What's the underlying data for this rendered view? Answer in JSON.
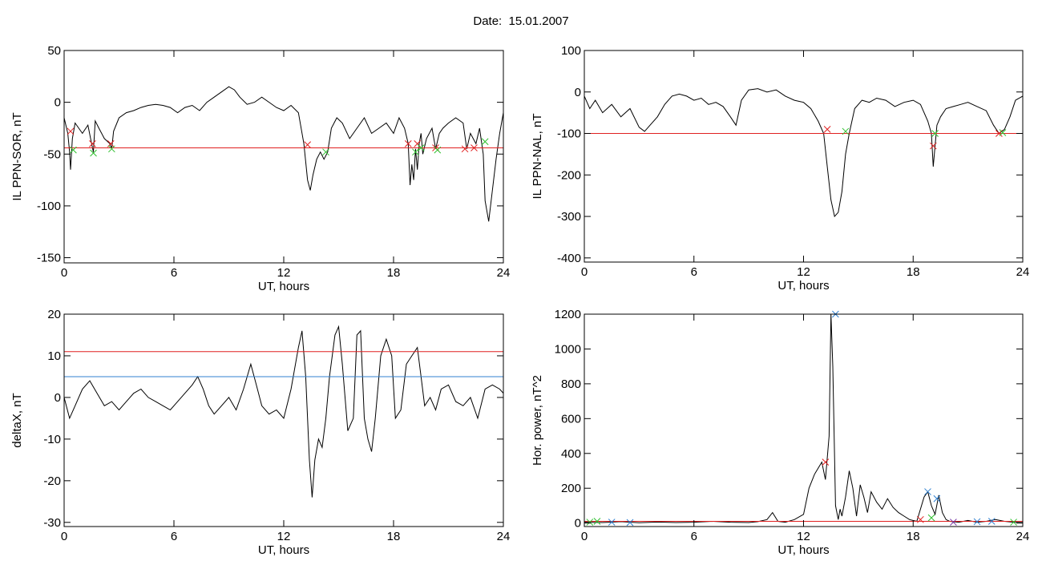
{
  "title": "Date:  15.01.2007",
  "chart_data": [
    {
      "type": "line",
      "ylabel": "IL PPN-SOR, nT",
      "xlabel": "UT, hours",
      "xlim": [
        0,
        24
      ],
      "ylim": [
        -155,
        50
      ],
      "xticks": [
        0,
        6,
        12,
        18,
        24
      ],
      "yticks": [
        -150,
        -100,
        -50,
        0,
        50
      ],
      "thresholds": [
        {
          "value": -44,
          "color": "#e02020"
        }
      ],
      "series": [
        {
          "color": "#000000",
          "x": [
            0,
            0.2,
            0.3,
            0.35,
            0.45,
            0.6,
            0.8,
            1.0,
            1.3,
            1.5,
            1.6,
            1.7,
            1.9,
            2.2,
            2.5,
            2.6,
            2.7,
            3.0,
            3.4,
            3.8,
            4.2,
            4.6,
            5.0,
            5.4,
            5.8,
            6.2,
            6.6,
            7.0,
            7.4,
            7.8,
            8.2,
            8.6,
            9.0,
            9.3,
            9.6,
            10.0,
            10.4,
            10.8,
            11.2,
            11.6,
            12.0,
            12.4,
            12.8,
            13.1,
            13.3,
            13.45,
            13.6,
            13.8,
            14.0,
            14.2,
            14.4,
            14.6,
            14.9,
            15.2,
            15.6,
            16.0,
            16.4,
            16.8,
            17.2,
            17.6,
            18.0,
            18.3,
            18.6,
            18.8,
            18.9,
            19.0,
            19.1,
            19.2,
            19.3,
            19.4,
            19.5,
            19.6,
            19.8,
            20.1,
            20.3,
            20.5,
            20.7,
            21.0,
            21.4,
            21.8,
            22.0,
            22.2,
            22.5,
            22.7,
            22.9,
            23.0,
            23.2,
            23.4,
            23.6,
            23.8,
            24.0
          ],
          "y": [
            -15,
            -30,
            -48,
            -65,
            -35,
            -20,
            -25,
            -30,
            -22,
            -40,
            -48,
            -18,
            -25,
            -35,
            -40,
            -45,
            -28,
            -15,
            -10,
            -8,
            -5,
            -3,
            -2,
            -3,
            -5,
            -10,
            -5,
            -3,
            -8,
            0,
            5,
            10,
            15,
            12,
            5,
            -2,
            0,
            5,
            0,
            -5,
            -8,
            -3,
            -10,
            -40,
            -75,
            -85,
            -70,
            -55,
            -48,
            -55,
            -48,
            -25,
            -15,
            -20,
            -35,
            -25,
            -15,
            -30,
            -25,
            -20,
            -30,
            -15,
            -25,
            -40,
            -80,
            -60,
            -75,
            -45,
            -65,
            -40,
            -30,
            -50,
            -35,
            -25,
            -45,
            -30,
            -25,
            -20,
            -15,
            -20,
            -45,
            -30,
            -40,
            -25,
            -50,
            -95,
            -115,
            -85,
            -55,
            -30,
            -10
          ]
        }
      ],
      "markers": [
        {
          "x": 0.35,
          "y": -28,
          "color": "#e02020"
        },
        {
          "x": 0.5,
          "y": -46,
          "color": "#30c030"
        },
        {
          "x": 1.55,
          "y": -40,
          "color": "#e02020"
        },
        {
          "x": 1.6,
          "y": -49,
          "color": "#30c030"
        },
        {
          "x": 2.55,
          "y": -40,
          "color": "#e02020"
        },
        {
          "x": 2.6,
          "y": -45,
          "color": "#30c030"
        },
        {
          "x": 13.3,
          "y": -41,
          "color": "#e02020"
        },
        {
          "x": 14.3,
          "y": -48,
          "color": "#30c030"
        },
        {
          "x": 18.8,
          "y": -40,
          "color": "#e02020"
        },
        {
          "x": 19.3,
          "y": -40,
          "color": "#e02020"
        },
        {
          "x": 19.2,
          "y": -48,
          "color": "#30c030"
        },
        {
          "x": 19.5,
          "y": -44,
          "color": "#30c030"
        },
        {
          "x": 20.3,
          "y": -44,
          "color": "#e02020"
        },
        {
          "x": 20.4,
          "y": -46,
          "color": "#30c030"
        },
        {
          "x": 21.9,
          "y": -45,
          "color": "#e02020"
        },
        {
          "x": 22.4,
          "y": -44,
          "color": "#e02020"
        },
        {
          "x": 23.0,
          "y": -38,
          "color": "#30c030"
        }
      ]
    },
    {
      "type": "line",
      "ylabel": "IL PPN-NAL, nT",
      "xlabel": "UT, hours",
      "xlim": [
        0,
        24
      ],
      "ylim": [
        -410,
        100
      ],
      "xticks": [
        0,
        6,
        12,
        18,
        24
      ],
      "yticks": [
        -400,
        -300,
        -200,
        -100,
        0,
        100
      ],
      "thresholds": [
        {
          "value": -100,
          "color": "#e02020"
        }
      ],
      "series": [
        {
          "color": "#000000",
          "x": [
            0,
            0.3,
            0.6,
            1.0,
            1.5,
            2.0,
            2.5,
            3.0,
            3.3,
            3.6,
            4.0,
            4.4,
            4.8,
            5.2,
            5.6,
            6.0,
            6.4,
            6.8,
            7.2,
            7.6,
            8.0,
            8.3,
            8.6,
            9.0,
            9.5,
            10.0,
            10.5,
            11.0,
            11.5,
            12.0,
            12.4,
            12.8,
            13.1,
            13.3,
            13.5,
            13.7,
            13.9,
            14.1,
            14.3,
            14.5,
            14.8,
            15.2,
            15.6,
            16.0,
            16.5,
            17.0,
            17.5,
            18.0,
            18.4,
            18.8,
            19.0,
            19.1,
            19.2,
            19.3,
            19.5,
            19.8,
            20.2,
            20.6,
            21.0,
            21.5,
            22.0,
            22.4,
            22.7,
            23.0,
            23.3,
            23.6,
            24.0
          ],
          "y": [
            -10,
            -40,
            -20,
            -50,
            -30,
            -60,
            -40,
            -85,
            -95,
            -80,
            -60,
            -30,
            -10,
            -5,
            -10,
            -20,
            -15,
            -30,
            -25,
            -35,
            -60,
            -80,
            -20,
            5,
            8,
            0,
            5,
            -10,
            -20,
            -25,
            -40,
            -70,
            -100,
            -180,
            -260,
            -300,
            -290,
            -240,
            -150,
            -100,
            -40,
            -20,
            -25,
            -15,
            -20,
            -35,
            -25,
            -20,
            -30,
            -70,
            -100,
            -180,
            -130,
            -80,
            -60,
            -40,
            -35,
            -30,
            -25,
            -35,
            -45,
            -80,
            -100,
            -90,
            -60,
            -20,
            -10
          ]
        }
      ],
      "markers": [
        {
          "x": 13.3,
          "y": -90,
          "color": "#e02020"
        },
        {
          "x": 14.3,
          "y": -95,
          "color": "#30c030"
        },
        {
          "x": 19.2,
          "y": -100,
          "color": "#30c030"
        },
        {
          "x": 19.1,
          "y": -130,
          "color": "#e02020"
        },
        {
          "x": 22.7,
          "y": -100,
          "color": "#e02020"
        },
        {
          "x": 22.9,
          "y": -98,
          "color": "#30c030"
        }
      ]
    },
    {
      "type": "line",
      "ylabel": "deltaX, nT",
      "xlabel": "UT, hours",
      "xlim": [
        0,
        24
      ],
      "ylim": [
        -31,
        20
      ],
      "xticks": [
        0,
        6,
        12,
        18,
        24
      ],
      "yticks": [
        -30,
        -20,
        -10,
        0,
        10,
        20
      ],
      "thresholds": [
        {
          "value": 11,
          "color": "#e02020"
        },
        {
          "value": 5,
          "color": "#3080d0"
        }
      ],
      "series": [
        {
          "color": "#000000",
          "x": [
            0,
            0.3,
            0.6,
            1.0,
            1.4,
            1.8,
            2.2,
            2.6,
            3.0,
            3.4,
            3.8,
            4.2,
            4.6,
            5.0,
            5.4,
            5.8,
            6.2,
            6.6,
            7.0,
            7.3,
            7.6,
            7.9,
            8.2,
            8.6,
            9.0,
            9.4,
            9.8,
            10.2,
            10.5,
            10.8,
            11.2,
            11.6,
            12.0,
            12.4,
            12.8,
            13.0,
            13.2,
            13.4,
            13.55,
            13.7,
            13.9,
            14.1,
            14.3,
            14.5,
            14.8,
            15.0,
            15.2,
            15.5,
            15.8,
            16.0,
            16.2,
            16.4,
            16.6,
            16.8,
            17.0,
            17.3,
            17.6,
            17.9,
            18.1,
            18.4,
            18.7,
            19.0,
            19.3,
            19.5,
            19.7,
            20.0,
            20.3,
            20.6,
            21.0,
            21.4,
            21.8,
            22.2,
            22.6,
            23.0,
            23.4,
            23.8,
            24.0
          ],
          "y": [
            0,
            -5,
            -2,
            2,
            4,
            1,
            -2,
            -1,
            -3,
            -1,
            1,
            2,
            0,
            -1,
            -2,
            -3,
            -1,
            1,
            3,
            5,
            2,
            -2,
            -4,
            -2,
            0,
            -3,
            2,
            8,
            3,
            -2,
            -4,
            -3,
            -5,
            2,
            12,
            16,
            5,
            -15,
            -24,
            -15,
            -10,
            -12,
            -5,
            5,
            15,
            17,
            8,
            -8,
            -5,
            15,
            16,
            -5,
            -10,
            -13,
            -5,
            10,
            14,
            10,
            -5,
            -3,
            8,
            10,
            12,
            5,
            -2,
            0,
            -3,
            2,
            3,
            -1,
            -2,
            0,
            -5,
            2,
            3,
            2,
            1
          ]
        }
      ],
      "markers": []
    },
    {
      "type": "line",
      "ylabel": "Hor. power, nT^2",
      "xlabel": "UT, hours",
      "xlim": [
        0,
        24
      ],
      "ylim": [
        -20,
        1200
      ],
      "xticks": [
        0,
        6,
        12,
        18,
        24
      ],
      "yticks": [
        0,
        200,
        400,
        600,
        800,
        1000,
        1200
      ],
      "thresholds": [
        {
          "value": 10,
          "color": "#e02020"
        }
      ],
      "series": [
        {
          "color": "#000000",
          "x": [
            0,
            1,
            2,
            3,
            4,
            5,
            6,
            7,
            8,
            9,
            9.5,
            10,
            10.3,
            10.6,
            11,
            11.5,
            12,
            12.3,
            12.6,
            13.0,
            13.2,
            13.4,
            13.5,
            13.6,
            13.75,
            13.9,
            14.0,
            14.1,
            14.3,
            14.5,
            14.7,
            14.9,
            15.1,
            15.3,
            15.5,
            15.7,
            16.0,
            16.3,
            16.6,
            16.9,
            17.2,
            17.5,
            17.8,
            18.2,
            18.6,
            18.8,
            19.0,
            19.2,
            19.4,
            19.6,
            19.8,
            20.0,
            20.5,
            21,
            21.5,
            22,
            22.5,
            23,
            23.5,
            24
          ],
          "y": [
            5,
            3,
            8,
            2,
            6,
            3,
            5,
            10,
            5,
            3,
            8,
            20,
            60,
            10,
            5,
            20,
            50,
            200,
            280,
            350,
            250,
            500,
            1200,
            900,
            100,
            20,
            80,
            40,
            150,
            300,
            200,
            40,
            220,
            150,
            60,
            180,
            120,
            80,
            140,
            90,
            60,
            40,
            20,
            10,
            150,
            180,
            100,
            50,
            160,
            60,
            20,
            10,
            5,
            15,
            5,
            10,
            20,
            10,
            5,
            3
          ]
        }
      ],
      "markers": [
        {
          "x": 13.75,
          "y": 1200,
          "color": "#3080d0"
        },
        {
          "x": 13.2,
          "y": 350,
          "color": "#e02020"
        },
        {
          "x": 18.4,
          "y": 20,
          "color": "#e02020"
        },
        {
          "x": 18.8,
          "y": 180,
          "color": "#3080d0"
        },
        {
          "x": 19.3,
          "y": 140,
          "color": "#3080d0"
        },
        {
          "x": 19.0,
          "y": 30,
          "color": "#30c030"
        },
        {
          "x": 0.3,
          "y": 5,
          "color": "#30c030"
        },
        {
          "x": 0.7,
          "y": 10,
          "color": "#30c030"
        },
        {
          "x": 1.5,
          "y": 5,
          "color": "#3080d0"
        },
        {
          "x": 2.5,
          "y": 3,
          "color": "#3080d0"
        },
        {
          "x": 20.2,
          "y": 5,
          "color": "#7030a0"
        },
        {
          "x": 21.5,
          "y": 8,
          "color": "#3080d0"
        },
        {
          "x": 22.3,
          "y": 10,
          "color": "#3080d0"
        },
        {
          "x": 23.5,
          "y": 5,
          "color": "#30c030"
        }
      ]
    }
  ]
}
